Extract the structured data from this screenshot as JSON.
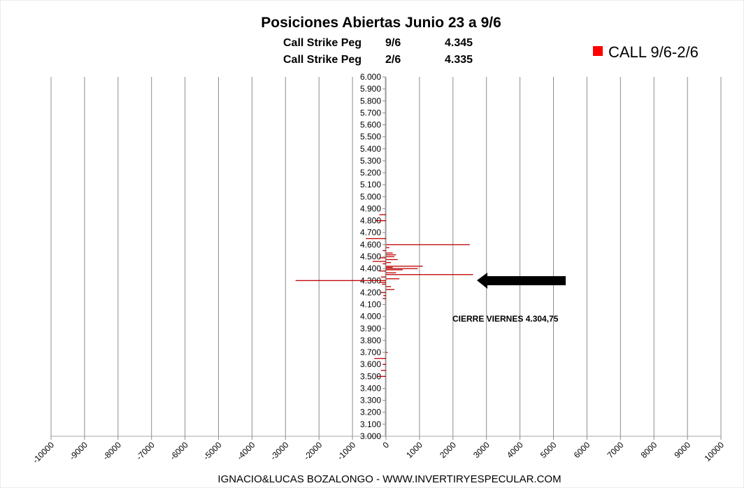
{
  "chart_data": {
    "type": "bar",
    "orientation": "horizontal",
    "title": "Posiciones Abiertas Junio 23 a 9/6",
    "subtitle_rows": [
      {
        "label": "Call Strike Peg",
        "date": "9/6",
        "value": "4.345"
      },
      {
        "label": "Call Strike Peg",
        "date": "2/6",
        "value": "4.335"
      }
    ],
    "legend": {
      "position": "top-right",
      "entries": [
        {
          "name": "CALL 9/6-2/6",
          "color": "#ff0000"
        }
      ]
    },
    "series_color": "#c00000",
    "xlim": [
      -10000,
      10000
    ],
    "x_ticks": [
      "-10000",
      "-9000",
      "-8000",
      "-7000",
      "-6000",
      "-5000",
      "-4000",
      "-3000",
      "-2000",
      "-1000",
      "0",
      "1000",
      "2000",
      "3000",
      "4000",
      "5000",
      "6000",
      "7000",
      "8000",
      "9000",
      "10000"
    ],
    "ylim": [
      3000,
      6000
    ],
    "y_ticks": [
      "3.000",
      "3.100",
      "3.200",
      "3.300",
      "3.400",
      "3.500",
      "3.600",
      "3.700",
      "3.800",
      "3.900",
      "4.000",
      "4.100",
      "4.200",
      "4.300",
      "4.400",
      "4.500",
      "4.600",
      "4.700",
      "4.800",
      "4.900",
      "5.000",
      "5.100",
      "5.200",
      "5.300",
      "5.400",
      "5.500",
      "5.600",
      "5.700",
      "5.800",
      "5.900",
      "6.000"
    ],
    "grid": "vertical",
    "bars": [
      {
        "strike": 3500,
        "value": -250
      },
      {
        "strike": 3550,
        "value": -150
      },
      {
        "strike": 3600,
        "value": -100
      },
      {
        "strike": 3650,
        "value": -350
      },
      {
        "strike": 3700,
        "value": 50
      },
      {
        "strike": 4150,
        "value": -100
      },
      {
        "strike": 4175,
        "value": -80
      },
      {
        "strike": 4200,
        "value": -150
      },
      {
        "strike": 4225,
        "value": 250
      },
      {
        "strike": 4250,
        "value": 150
      },
      {
        "strike": 4270,
        "value": -120
      },
      {
        "strike": 4285,
        "value": -200
      },
      {
        "strike": 4300,
        "value": -2700
      },
      {
        "strike": 4315,
        "value": 400
      },
      {
        "strike": 4330,
        "value": -150
      },
      {
        "strike": 4350,
        "value": 2600
      },
      {
        "strike": 4365,
        "value": 300
      },
      {
        "strike": 4380,
        "value": -200
      },
      {
        "strike": 4390,
        "value": 500
      },
      {
        "strike": 4400,
        "value": 950
      },
      {
        "strike": 4410,
        "value": 200
      },
      {
        "strike": 4420,
        "value": 1100
      },
      {
        "strike": 4440,
        "value": -100
      },
      {
        "strike": 4450,
        "value": 150
      },
      {
        "strike": 4460,
        "value": -400
      },
      {
        "strike": 4475,
        "value": 350
      },
      {
        "strike": 4490,
        "value": -200
      },
      {
        "strike": 4500,
        "value": 250
      },
      {
        "strike": 4515,
        "value": 300
      },
      {
        "strike": 4530,
        "value": 200
      },
      {
        "strike": 4550,
        "value": -100
      },
      {
        "strike": 4575,
        "value": 100
      },
      {
        "strike": 4600,
        "value": 2500
      },
      {
        "strike": 4650,
        "value": -600
      },
      {
        "strike": 4800,
        "value": -300
      },
      {
        "strike": 4850,
        "value": -200
      }
    ],
    "annotation": {
      "text": "CIERRE VIERNES 4.304,75",
      "strike": 4304.75
    },
    "footer": "IGNACIO&LUCAS BOZALONGO - WWW.INVERTIRYESPECULAR.COM"
  }
}
